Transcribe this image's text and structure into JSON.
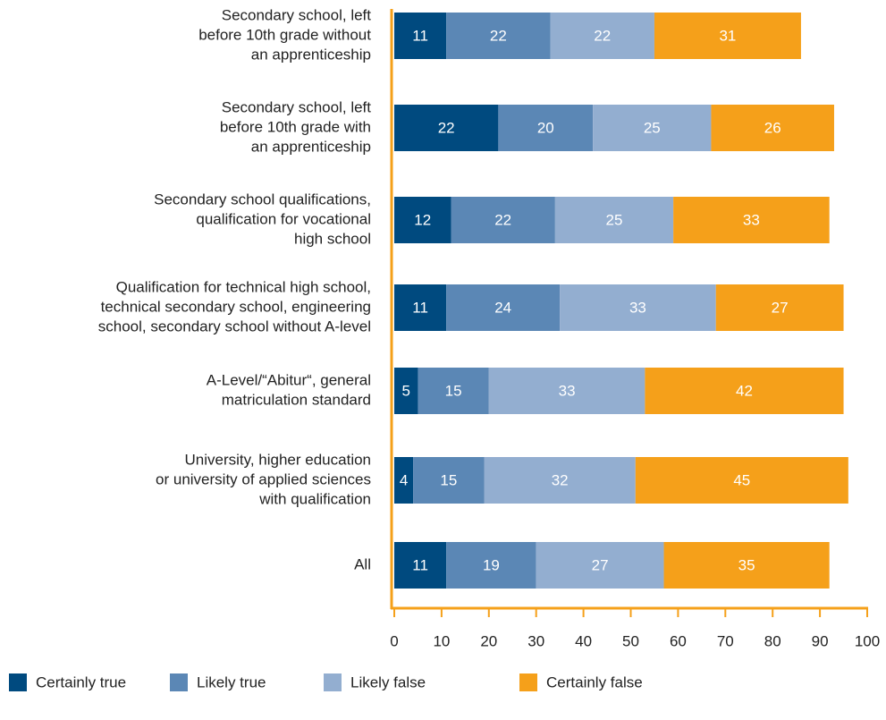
{
  "chart_data": {
    "type": "stacked-barh",
    "categories": [
      [
        "Secondary school, left",
        "before 10th grade without",
        "an apprenticeship"
      ],
      [
        "Secondary school, left",
        "before 10th grade with",
        "an apprenticeship"
      ],
      [
        "Secondary school qualifications,",
        "qualification for vocational",
        "high school"
      ],
      [
        "Qualification for technical high school,",
        "technical secondary school, engineering",
        "school, secondary school without A-level"
      ],
      [
        "A-Level/“Abitur“, general",
        "matriculation standard"
      ],
      [
        "University, higher education",
        "or university of applied sciences",
        "with qualification"
      ],
      [
        "All"
      ]
    ],
    "series": [
      {
        "name": "Certainly true",
        "color": "#004a7f",
        "values": [
          11,
          22,
          12,
          11,
          5,
          4,
          11
        ]
      },
      {
        "name": "Likely true",
        "color": "#5b87b5",
        "values": [
          22,
          20,
          22,
          24,
          15,
          15,
          19
        ]
      },
      {
        "name": "Likely false",
        "color": "#93aed0",
        "values": [
          22,
          25,
          25,
          33,
          33,
          32,
          27
        ]
      },
      {
        "name": "Certainly false",
        "color": "#f5a01a",
        "values": [
          31,
          26,
          33,
          27,
          42,
          45,
          35
        ]
      }
    ],
    "xlim": [
      0,
      100
    ],
    "xticks": [
      0,
      10,
      20,
      30,
      40,
      50,
      60,
      70,
      80,
      90,
      100
    ],
    "axis_color": "#f5a01a"
  }
}
